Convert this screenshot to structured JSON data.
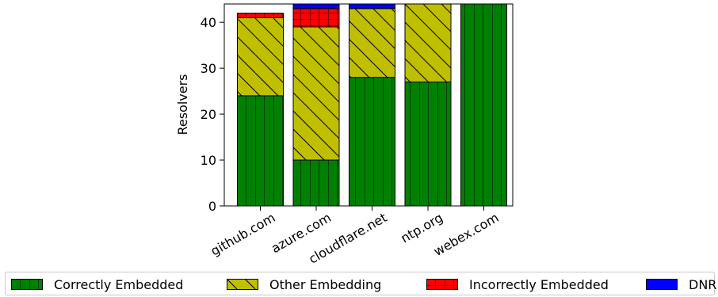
{
  "chart_data": {
    "type": "bar",
    "stacked": true,
    "ylabel": "Resolvers",
    "ylim": [
      0,
      44
    ],
    "yticks": [
      0,
      10,
      20,
      30,
      40
    ],
    "categories": [
      "github.com",
      "azure.com",
      "cloudflare.net",
      "ntp.org",
      "webex.com"
    ],
    "series": [
      {
        "name": "Correctly Embedded",
        "values": [
          24,
          10,
          28,
          27,
          44
        ],
        "color": "#008000",
        "hatch": "vertical"
      },
      {
        "name": "Other Embedding",
        "values": [
          17,
          29,
          15,
          17,
          0
        ],
        "color": "#bfbf00",
        "hatch": "diagonal"
      },
      {
        "name": "Incorrectly Embedded",
        "values": [
          1,
          4,
          0,
          0,
          0
        ],
        "color": "#ff0000",
        "hatch": "grid"
      },
      {
        "name": "DNR",
        "values": [
          0,
          1,
          1,
          0,
          0
        ],
        "color": "#0000ff",
        "hatch": "none"
      }
    ],
    "grid": false,
    "legend_position": "bottom"
  }
}
